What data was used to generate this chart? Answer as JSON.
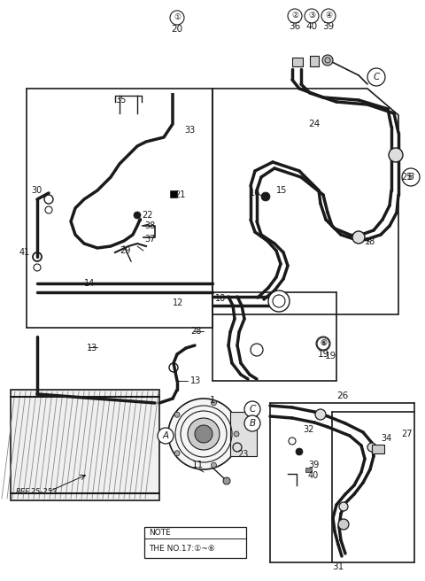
{
  "bg_color": "#ffffff",
  "line_color": "#1a1a1a",
  "figsize": [
    4.8,
    6.56
  ],
  "dpi": 100,
  "ref_text": "REF.25-253",
  "note_text1": "NOTE",
  "note_text2": "THE NO.17:①~⑥"
}
